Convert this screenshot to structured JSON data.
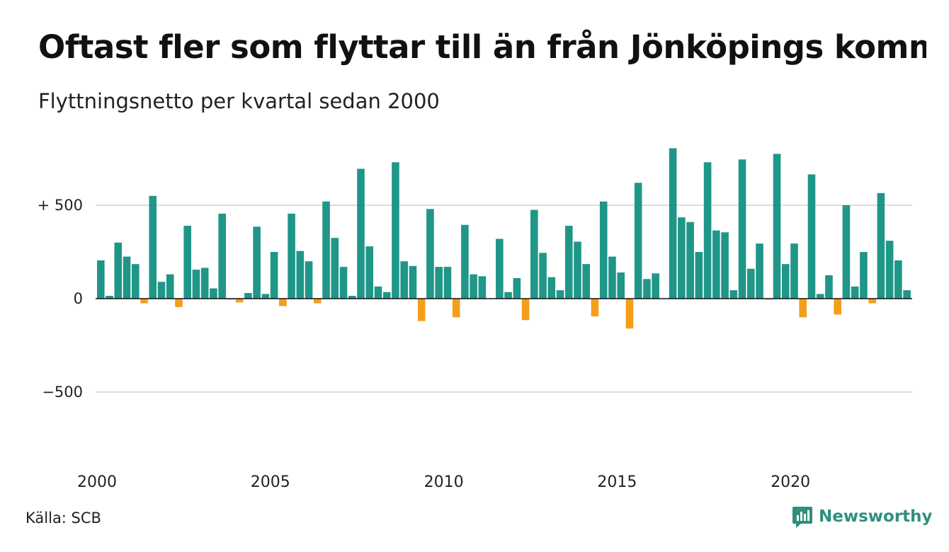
{
  "title": "Oftast fler som flyttar till än från Jönköpings kommun",
  "subtitle": "Flyttningsnetto per kvartal sedan 2000",
  "source": "Källa: SCB",
  "brand": {
    "name": "Newsworthy",
    "icon": "newsworthy-logo-icon",
    "color": "#2f8f7f"
  },
  "colors": {
    "positive": "#1f9688",
    "negative": "#f59e1c",
    "grid": "#dddddd",
    "axis": "#111111"
  },
  "chart_data": {
    "type": "bar",
    "ylim": [
      -800,
      800
    ],
    "y_ticks": [
      {
        "value": 500,
        "label": "+ 500"
      },
      {
        "value": 0,
        "label": "0"
      },
      {
        "value": -500,
        "label": "−500"
      }
    ],
    "x_ticks": [
      {
        "value": "2000",
        "label": "2000"
      },
      {
        "value": "2005",
        "label": "2005"
      },
      {
        "value": "2010",
        "label": "2010"
      },
      {
        "value": "2015",
        "label": "2015"
      },
      {
        "value": "2020",
        "label": "2020"
      }
    ],
    "grid": true,
    "start_year": 2000,
    "values": [
      205,
      15,
      300,
      225,
      185,
      -25,
      550,
      90,
      130,
      -45,
      390,
      155,
      165,
      55,
      455,
      -5,
      -20,
      30,
      385,
      25,
      250,
      -40,
      455,
      255,
      200,
      -25,
      520,
      325,
      170,
      15,
      695,
      280,
      65,
      35,
      730,
      200,
      175,
      -120,
      480,
      170,
      170,
      -100,
      395,
      130,
      120,
      0,
      320,
      35,
      110,
      -115,
      475,
      245,
      115,
      45,
      390,
      305,
      185,
      -95,
      520,
      225,
      140,
      -160,
      620,
      105,
      135,
      0,
      805,
      435,
      410,
      250,
      730,
      365,
      355,
      45,
      745,
      160,
      295,
      -5,
      775,
      185,
      295,
      -100,
      665,
      25,
      125,
      -85,
      500,
      65,
      250,
      -25,
      565,
      310,
      205,
      45
    ]
  }
}
